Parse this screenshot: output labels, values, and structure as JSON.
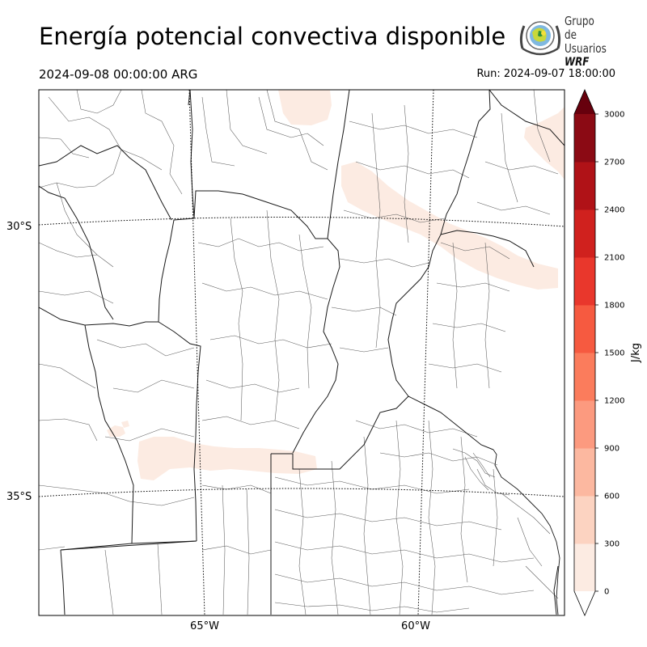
{
  "title": "Energía potencial convectiva disponible",
  "valid_time": "2024-09-08 00:00:00 ARG",
  "run_time": "Run: 2024-09-07 18:00:00",
  "logo": {
    "line1": "Grupo de",
    "line2": "Usuarios",
    "line3": "WRF"
  },
  "map": {
    "lat_labels": [
      "30°S",
      "35°S"
    ],
    "lon_labels": [
      "65°W",
      "60°W"
    ]
  },
  "colorbar": {
    "unit_label": "J/kg",
    "levels": [
      0,
      300,
      600,
      900,
      1200,
      1500,
      1800,
      2100,
      2400,
      2700,
      3000
    ],
    "tick_labels": [
      "0",
      "300",
      "600",
      "900",
      "1200",
      "1500",
      "1800",
      "2100",
      "2400",
      "2700",
      "3000"
    ],
    "colors": [
      "#fcebe2",
      "#fcd3c1",
      "#fcb8a0",
      "#fc9a7f",
      "#fb7c5c",
      "#f65a40",
      "#e9372c",
      "#d0211e",
      "#b01217",
      "#8b0a14"
    ],
    "over_color": "#67000d",
    "under_color": "#ffffff"
  },
  "field_shading_color": "#fcebe2"
}
